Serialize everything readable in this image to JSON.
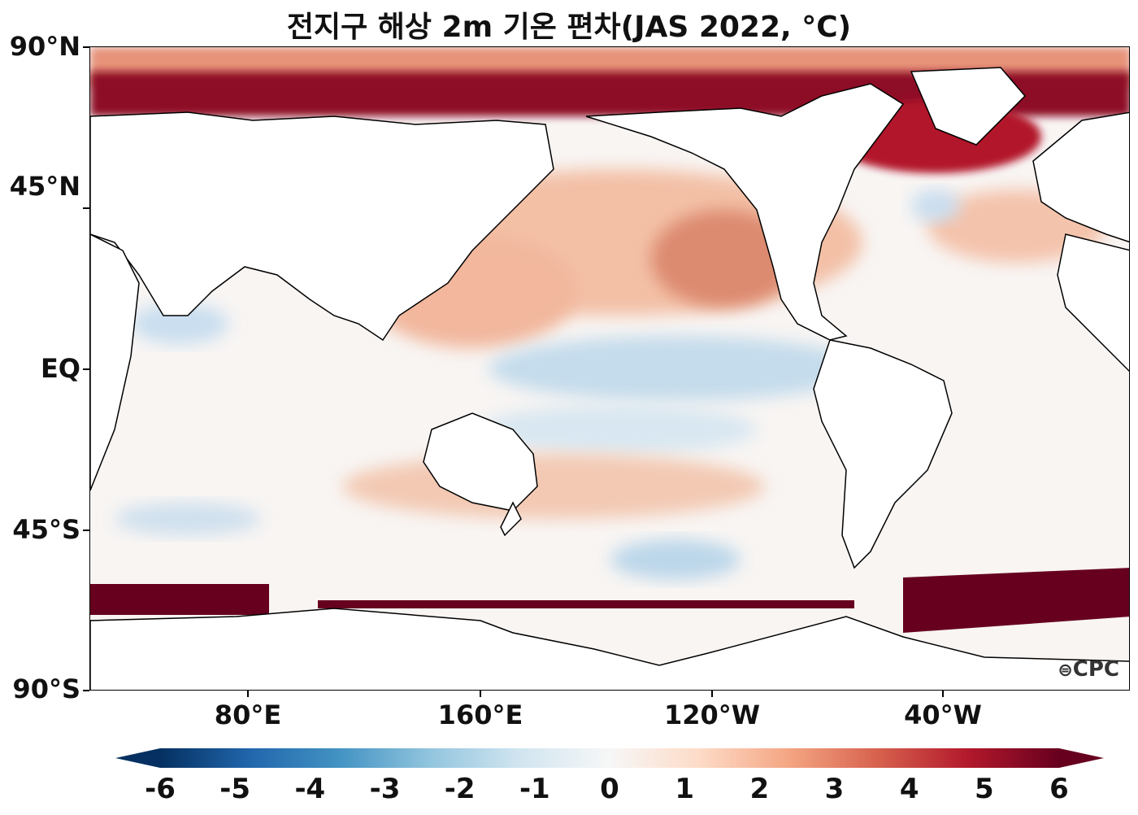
{
  "title": "전지구 해상 2m 기온 편차(JAS 2022, °C)",
  "y_labels": [
    "90°N",
    "45°N",
    "EQ",
    "45°S",
    "90°S"
  ],
  "x_labels": [
    "80°E",
    "160°E",
    "120°W",
    "40°W"
  ],
  "logo_text": "CPC",
  "colorbar": {
    "ticks": [
      "-6",
      "-5",
      "-4",
      "-3",
      "-2",
      "-1",
      "0",
      "1",
      "2",
      "3",
      "4",
      "5",
      "6"
    ],
    "colormap": "RdBu_r",
    "range": [
      -6,
      6
    ],
    "extend": "both"
  },
  "colors": {
    "strong_warm": "#67001f",
    "warm": "#d6604d",
    "weak_warm": "#f4a582",
    "neutral": "#f7f7f7",
    "weak_cool": "#92c5de",
    "strong_cool": "#053061",
    "land": "#ffffff"
  },
  "map": {
    "projection": "PlateCarree",
    "central_longitude": 200,
    "extent_lat": [
      -90,
      90
    ]
  }
}
